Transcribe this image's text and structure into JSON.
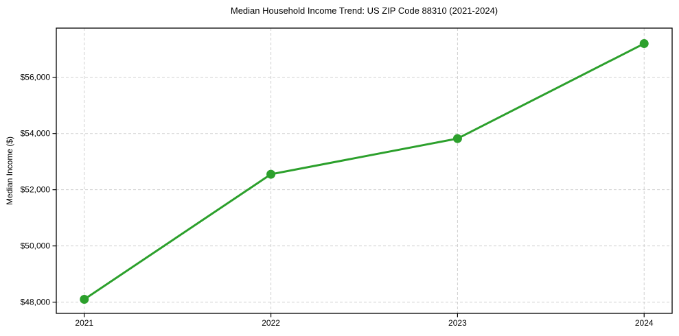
{
  "chart_data": {
    "type": "line",
    "title": "Median Household Income Trend: US ZIP Code 88310 (2021-2024)",
    "xlabel": "",
    "ylabel": "Median Income ($)",
    "x": [
      2021,
      2022,
      2023,
      2024
    ],
    "series": [
      {
        "name": "Median Household Income",
        "values": [
          48100,
          52550,
          53820,
          57200
        ]
      }
    ],
    "xticks": {
      "values": [
        2021,
        2022,
        2023,
        2024
      ],
      "labels": [
        "2021",
        "2022",
        "2023",
        "2024"
      ]
    },
    "yticks": {
      "values": [
        48000,
        50000,
        52000,
        54000,
        56000
      ],
      "labels": [
        "$48,000",
        "$50,000",
        "$52,000",
        "$54,000",
        "$56,000"
      ]
    },
    "xlim": [
      2020.85,
      2024.15
    ],
    "ylim": [
      47600,
      57750
    ],
    "grid": true,
    "grid_style": "dashed",
    "legend": false,
    "line_color": "#2ca02c",
    "marker": "circle",
    "marker_radius": 6.5,
    "line_width": 3,
    "grid_color": "#cfcfcf",
    "spine_color": "#000000",
    "background": "#ffffff"
  }
}
